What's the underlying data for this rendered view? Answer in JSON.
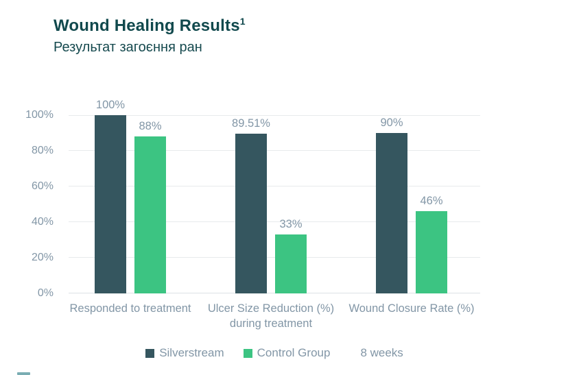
{
  "header": {
    "title": "Wound Healing Results",
    "footnote_marker": "1",
    "subtitle": "Результат загоєння ран"
  },
  "chart_data": {
    "type": "bar",
    "title": "Wound Healing Results",
    "categories": [
      "Responded to treatment",
      "Ulcer Size Reduction (%) during treatment",
      "Wound Closure Rate (%)"
    ],
    "series": [
      {
        "name": "Silverstream",
        "color": "#35565f",
        "values": [
          100,
          89.51,
          90
        ],
        "value_labels": [
          "100%",
          "89.51%",
          "90%"
        ]
      },
      {
        "name": "Control Group",
        "color": "#3cc482",
        "values": [
          88,
          33,
          46
        ],
        "value_labels": [
          "88%",
          "33%",
          "46%"
        ]
      }
    ],
    "ylim": [
      0,
      100
    ],
    "ytick_values": [
      0,
      20,
      40,
      60,
      80,
      100
    ],
    "ytick_labels": [
      "0%",
      "20%",
      "40%",
      "60%",
      "80%",
      "100%"
    ],
    "grid": true,
    "legend_position": "bottom",
    "legend_note": "8 weeks"
  },
  "colors": {
    "title_text": "#11494d",
    "axis_text": "#8296a6",
    "gridline": "#e7eaec",
    "silverstream_bar": "#35565f",
    "control_group_bar": "#3cc482",
    "fragment_line": "#6ba4ab"
  }
}
